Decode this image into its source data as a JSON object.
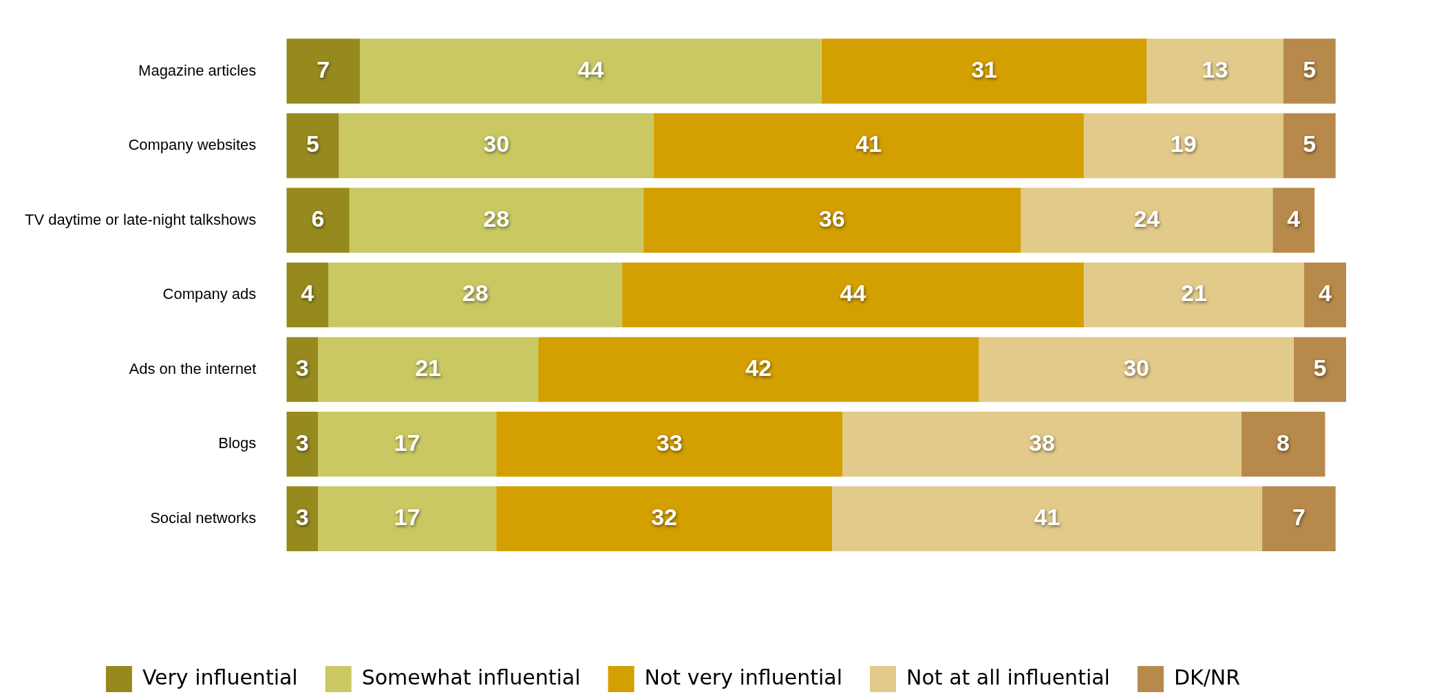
{
  "chart_data": {
    "type": "bar",
    "orientation": "horizontal",
    "stacked": true,
    "data_labels": true,
    "legend": "bottom",
    "grid": false,
    "tick_labels": "y",
    "xlim": [
      0,
      101
    ],
    "categories": [
      "Magazine articles",
      "Company websites",
      "TV daytime or late-night talkshows",
      "Company ads",
      "Ads on the internet",
      "Blogs",
      "Social networks"
    ],
    "series": [
      {
        "name": "Very influential",
        "color": "#968a1e",
        "values": [
          7,
          5,
          6,
          4,
          3,
          3,
          3
        ]
      },
      {
        "name": "Somewhat influential",
        "color": "#c9c863",
        "values": [
          44,
          30,
          28,
          28,
          21,
          17,
          17
        ]
      },
      {
        "name": "Not very influential",
        "color": "#d49f00",
        "values": [
          31,
          41,
          36,
          44,
          42,
          33,
          32
        ]
      },
      {
        "name": "Not at all influential",
        "color": "#e2ca8a",
        "values": [
          13,
          19,
          24,
          21,
          30,
          38,
          41
        ]
      },
      {
        "name": "DK/NR",
        "color": "#b7894a",
        "values": [
          5,
          5,
          4,
          4,
          5,
          8,
          7
        ]
      }
    ]
  }
}
